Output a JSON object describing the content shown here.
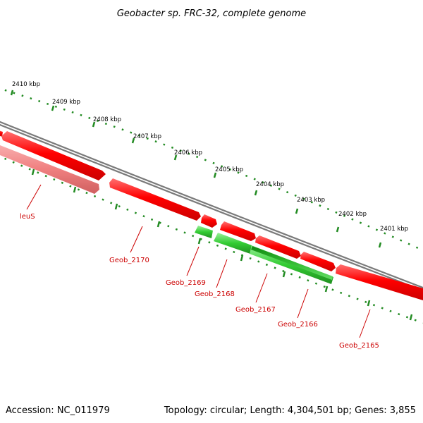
{
  "title": "Geobacter sp. FRC-32, complete genome",
  "footer": {
    "accession": "Accession: NC_011979",
    "summary": "Topology: circular; Length: 4,304,501 bp; Genes: 3,855"
  },
  "colors": {
    "forward_strand": "#ff0000",
    "forward_strand_faded": "#f08080",
    "reverse_strand": "#33cc33",
    "reverse_strand_dark": "#229922",
    "backbone": "#808080",
    "ticks": "#228b22",
    "label_text": "#cc0000"
  },
  "scale_labels": [
    "2410 kbp",
    "2409 kbp",
    "2408 kbp",
    "2407 kbp",
    "2406 kbp",
    "2405 kbp",
    "2404 kbp",
    "2403 kbp",
    "2402 kbp",
    "2401 kbp"
  ],
  "gene_labels": [
    "leuS",
    "Geob_2170",
    "Geob_2169",
    "Geob_2168",
    "Geob_2167",
    "Geob_2166",
    "Geob_2165"
  ]
}
